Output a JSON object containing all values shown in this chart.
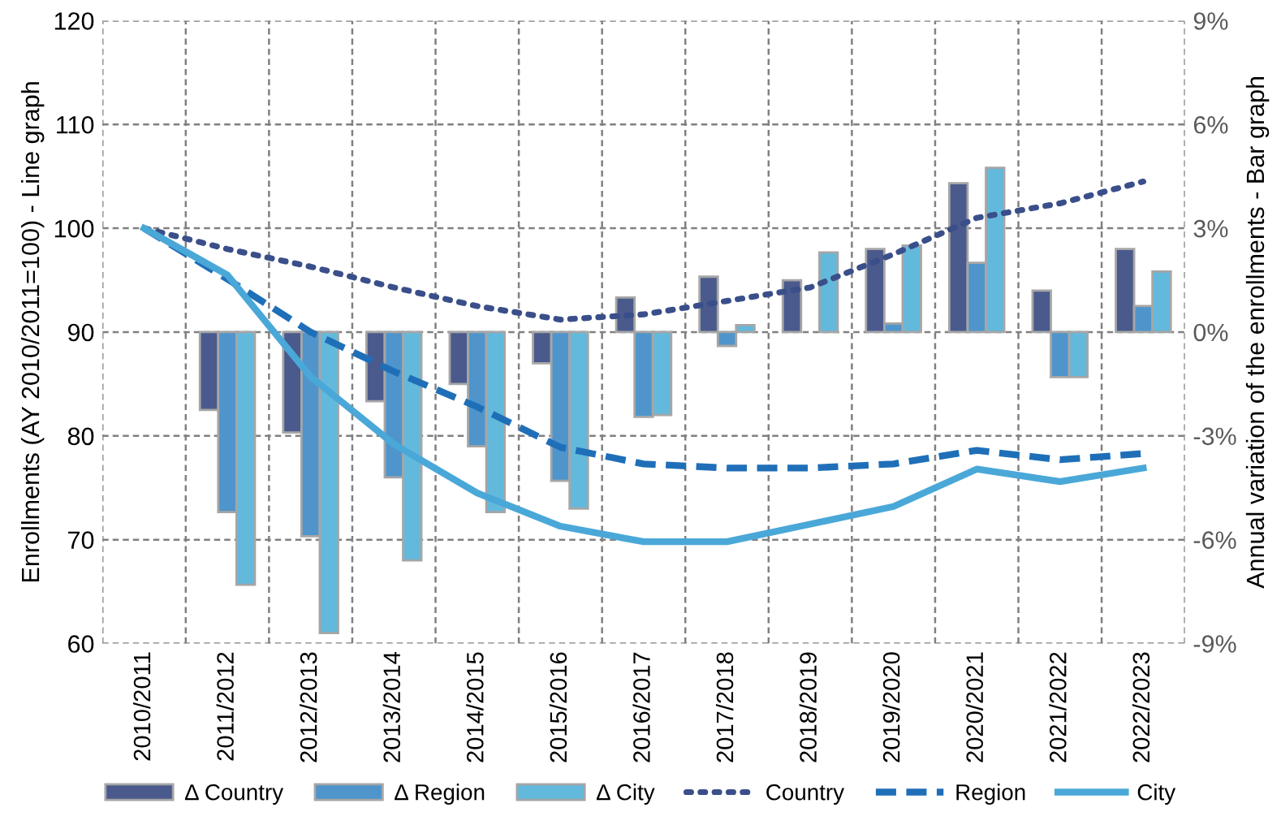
{
  "chart_data": {
    "type": "bar",
    "ylabel": "Enrollments (AY 2010/2011=100) - Line graph",
    "y2label": "Annual variation of the enrollments - Bar graph",
    "categories": [
      "2010/2011",
      "2011/2012",
      "2012/2013",
      "2013/2014",
      "2014/2015",
      "2015/2016",
      "2016/2017",
      "2017/2018",
      "2018/2019",
      "2019/2020",
      "2020/2021",
      "2021/2022",
      "2022/2023"
    ],
    "series": [
      {
        "name": "Δ Country",
        "axis": "y2",
        "color": "#4a5a8c",
        "values": [
          null,
          -2.25,
          -2.9,
          -2.0,
          -1.5,
          -0.9,
          1.0,
          1.6,
          1.5,
          2.4,
          4.3,
          1.2,
          2.4
        ]
      },
      {
        "name": "Δ Region",
        "axis": "y2",
        "color": "#4f95cb",
        "values": [
          null,
          -5.2,
          -5.9,
          -4.2,
          -3.3,
          -4.3,
          -2.45,
          -0.4,
          null,
          0.25,
          2.0,
          -1.3,
          0.75
        ]
      },
      {
        "name": "Δ City",
        "axis": "y2",
        "color": "#63b9dc",
        "values": [
          null,
          -7.3,
          -8.7,
          -6.6,
          -5.2,
          -5.1,
          -2.4,
          0.2,
          2.3,
          2.5,
          4.75,
          -1.3,
          1.75
        ]
      },
      {
        "name": "Country",
        "type": "line",
        "axis": "y",
        "line_style": "dotted",
        "color": "#3a4f8a",
        "values": [
          100,
          98.0,
          96.3,
          94.3,
          92.5,
          91.2,
          91.7,
          93.0,
          94.3,
          97.5,
          101.0,
          102.4,
          104.5
        ]
      },
      {
        "name": "Region",
        "type": "line",
        "axis": "y",
        "line_style": "dashed",
        "color": "#1f6fb8",
        "values": [
          100,
          95.1,
          90.0,
          86.2,
          82.8,
          78.9,
          77.3,
          76.9,
          76.9,
          77.3,
          78.6,
          77.7,
          78.3
        ]
      },
      {
        "name": "City",
        "type": "line",
        "axis": "y",
        "line_style": "solid",
        "color": "#4aa8d8",
        "values": [
          100,
          95.5,
          85.7,
          79.2,
          74.5,
          71.3,
          69.8,
          69.8,
          71.5,
          73.2,
          76.8,
          75.6,
          76.9
        ]
      }
    ],
    "ylim": [
      60,
      120
    ],
    "yticks": [
      60,
      70,
      80,
      90,
      100,
      110,
      120
    ],
    "y2lim": [
      -9,
      9
    ],
    "y2ticks": [
      {
        "value": -9,
        "label": "-9%"
      },
      {
        "value": -6,
        "label": "-6%"
      },
      {
        "value": -3,
        "label": "-3%"
      },
      {
        "value": 0,
        "label": "0%"
      },
      {
        "value": 3,
        "label": "3%"
      },
      {
        "value": 6,
        "label": "6%"
      },
      {
        "value": 9,
        "label": "9%"
      }
    ],
    "grid": true,
    "legend": "bottom"
  }
}
